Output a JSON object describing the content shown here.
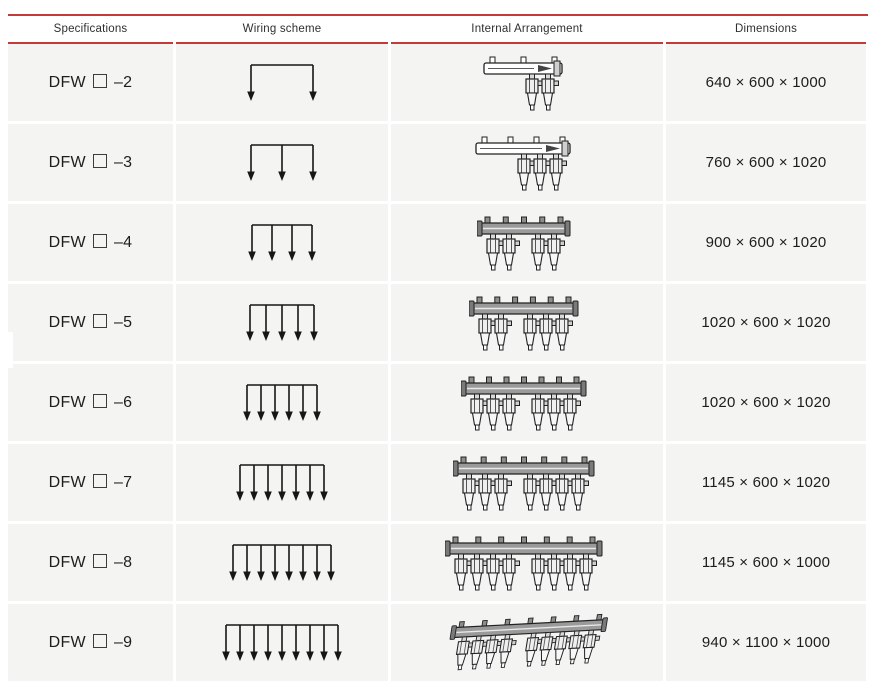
{
  "table": {
    "columns": [
      "Specifications",
      "Wiring scheme",
      "Internal Arrangement",
      "Dimensions"
    ],
    "rows": [
      {
        "spec_prefix": "DFW",
        "spec_box": "□",
        "spec_suffix": "–2",
        "ways": 2,
        "drawing_variant": "light",
        "dimensions": "640 × 600 × 1000"
      },
      {
        "spec_prefix": "DFW",
        "spec_box": "□",
        "spec_suffix": "–3",
        "ways": 3,
        "drawing_variant": "light",
        "dimensions": "760 × 600 × 1020"
      },
      {
        "spec_prefix": "DFW",
        "spec_box": "□",
        "spec_suffix": "–4",
        "ways": 4,
        "drawing_variant": "dark",
        "dimensions": "900 × 600 × 1020"
      },
      {
        "spec_prefix": "DFW",
        "spec_box": "□",
        "spec_suffix": "–5",
        "ways": 5,
        "drawing_variant": "dark",
        "dimensions": "1020 × 600 × 1020"
      },
      {
        "spec_prefix": "DFW",
        "spec_box": "□",
        "spec_suffix": "–6",
        "ways": 6,
        "drawing_variant": "dark",
        "dimensions": "1020 × 600 × 1020"
      },
      {
        "spec_prefix": "DFW",
        "spec_box": "□",
        "spec_suffix": "–7",
        "ways": 7,
        "drawing_variant": "dark",
        "dimensions": "1145 × 600 × 1020"
      },
      {
        "spec_prefix": "DFW",
        "spec_box": "□",
        "spec_suffix": "–8",
        "ways": 8,
        "drawing_variant": "dark",
        "dimensions": "1145 × 600 × 1000"
      },
      {
        "spec_prefix": "DFW",
        "spec_box": "□",
        "spec_suffix": "–9",
        "ways": 9,
        "drawing_variant": "iso",
        "dimensions": "940 × 1100 × 1000"
      }
    ]
  },
  "colors": {
    "accent_red": "#c23b38",
    "row_background": "#f4f4f2",
    "text": "#1d1d1d"
  }
}
